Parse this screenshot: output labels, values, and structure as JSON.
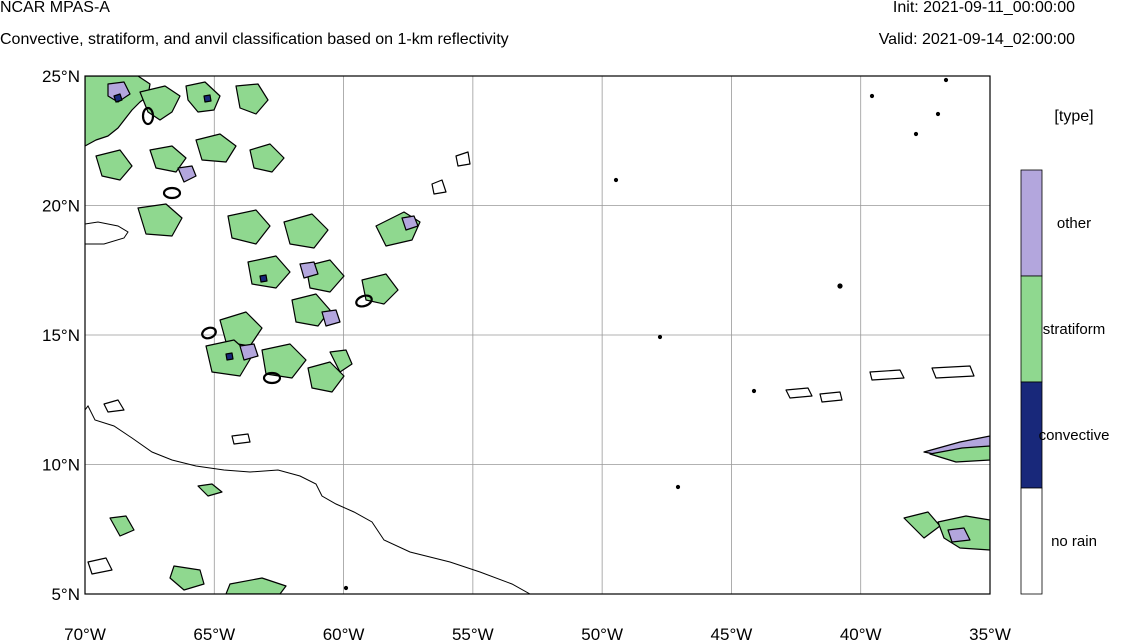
{
  "header": {
    "model": "NCAR MPAS-A",
    "init": "Init: 2021-09-11_00:00:00",
    "description": "Convective, stratiform, and anvil classification based on 1-km reflectivity",
    "valid": "Valid: 2021-09-14_02:00:00"
  },
  "map": {
    "lon_range": [
      -70,
      -35
    ],
    "lat_range": [
      5,
      25
    ],
    "lon_ticks": [
      {
        "lon": -70,
        "label": "70°W"
      },
      {
        "lon": -65,
        "label": "65°W"
      },
      {
        "lon": -60,
        "label": "60°W"
      },
      {
        "lon": -55,
        "label": "55°W"
      },
      {
        "lon": -50,
        "label": "50°W"
      },
      {
        "lon": -45,
        "label": "45°W"
      },
      {
        "lon": -40,
        "label": "40°W"
      },
      {
        "lon": -35,
        "label": "35°W"
      }
    ],
    "lat_ticks": [
      {
        "lat": 25,
        "label": "25°N"
      },
      {
        "lat": 20,
        "label": "20°N"
      },
      {
        "lat": 15,
        "label": "15°N"
      },
      {
        "lat": 10,
        "label": "10°N"
      },
      {
        "lat": 5,
        "label": "5°N"
      }
    ],
    "gridlines": true
  },
  "legend": {
    "title": "[type]",
    "classes": [
      {
        "label": "other",
        "color": "#b3a6dd"
      },
      {
        "label": "stratiform",
        "color": "#8fd88f"
      },
      {
        "label": "convective",
        "color": "#18287a"
      },
      {
        "label": "no rain",
        "color": "#ffffff"
      }
    ]
  },
  "colors": {
    "other": "#b3a6dd",
    "stratiform": "#8fd88f",
    "convective": "#18287a",
    "grid": "#999999",
    "coast": "#000000"
  }
}
